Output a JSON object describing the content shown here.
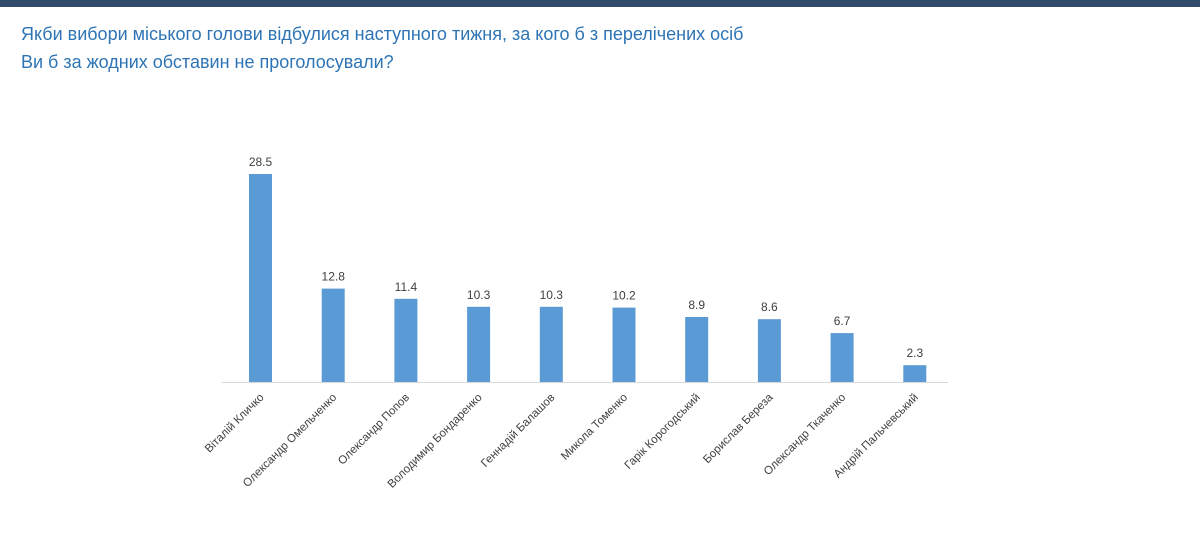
{
  "header": {
    "title_line1": "Якби вибори міського голови відбулися наступного тижня, за кого б з перелічених осіб",
    "title_line2": "Ви б за жодних обставин не проголосували?"
  },
  "colors": {
    "bar": "#5b9bd5",
    "title": "#2e74b5",
    "top_bar": "#2f4b69",
    "axis": "#d9d9d9",
    "text": "#404040"
  },
  "chart_data": {
    "type": "bar",
    "title": "Якби вибори міського голови відбулися наступного тижня, за кого б з перелічених осіб Ви б за жодних обставин не проголосували?",
    "categories": [
      "Віталій Кличко",
      "Олександр Омельченко",
      "Олександр Попов",
      "Володимир Бондаренко",
      "Геннадій Балашов",
      "Микола Томенко",
      "Гарік Корогодський",
      "Борислав Береза",
      "Олександр Ткаченко",
      "Андрій Пальчевський"
    ],
    "values": [
      28.5,
      12.8,
      11.4,
      10.3,
      10.3,
      10.2,
      8.9,
      8.6,
      6.7,
      2.3
    ],
    "data_labels": [
      "28.5",
      "12.8",
      "11.4",
      "10.3",
      "10.3",
      "10.2",
      "8.9",
      "8.6",
      "6.7",
      "2.3"
    ],
    "xlabel": "",
    "ylabel": "",
    "ylim": [
      0,
      28.5
    ],
    "grid": false,
    "legend": "none"
  }
}
